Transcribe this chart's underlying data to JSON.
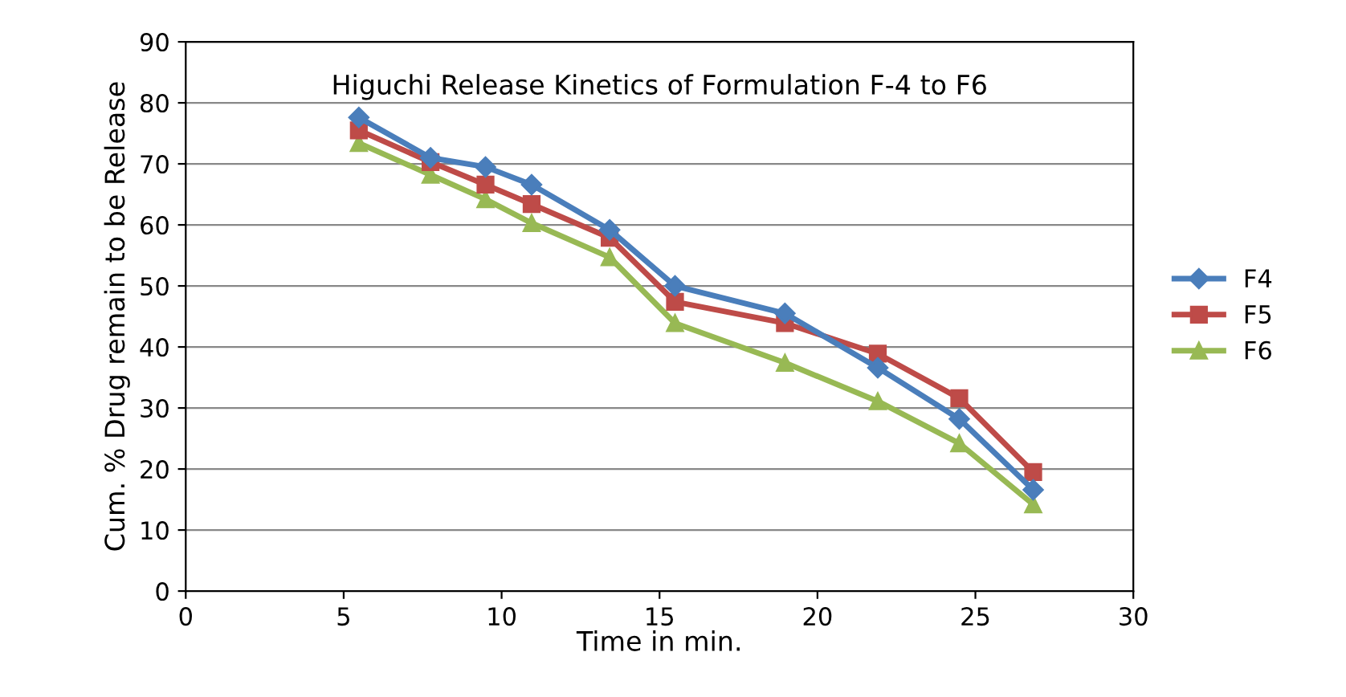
{
  "chart_data": {
    "type": "line",
    "title": "Higuchi Release Kinetics of Formulation F-4 to F6",
    "xlabel": "Time in min.",
    "ylabel": "Cum. % Drug remain to be Release",
    "x": [
      5.48,
      7.75,
      9.49,
      10.95,
      13.42,
      15.49,
      18.97,
      21.91,
      24.49,
      26.83
    ],
    "series": [
      {
        "name": "F4",
        "color": "#4a7ebb",
        "marker": "diamond",
        "values": [
          77.6,
          71.0,
          69.5,
          66.6,
          59.2,
          50.0,
          45.5,
          36.6,
          28.2,
          16.6
        ]
      },
      {
        "name": "F5",
        "color": "#be4b48",
        "marker": "square",
        "values": [
          75.5,
          70.3,
          66.6,
          63.4,
          57.9,
          47.4,
          43.9,
          38.9,
          31.6,
          19.5
        ]
      },
      {
        "name": "F6",
        "color": "#98b954",
        "marker": "triangle",
        "values": [
          73.4,
          68.2,
          64.2,
          60.3,
          54.7,
          43.9,
          37.4,
          31.1,
          24.2,
          14.2
        ]
      }
    ],
    "xlim": [
      0,
      30
    ],
    "xticks": [
      0,
      5,
      10,
      15,
      20,
      25,
      30
    ],
    "ylim": [
      0,
      90
    ],
    "yticks": [
      0,
      10,
      20,
      30,
      40,
      50,
      60,
      70,
      80,
      90
    ],
    "grid": "y",
    "legend": "right",
    "line_style": "solid"
  }
}
